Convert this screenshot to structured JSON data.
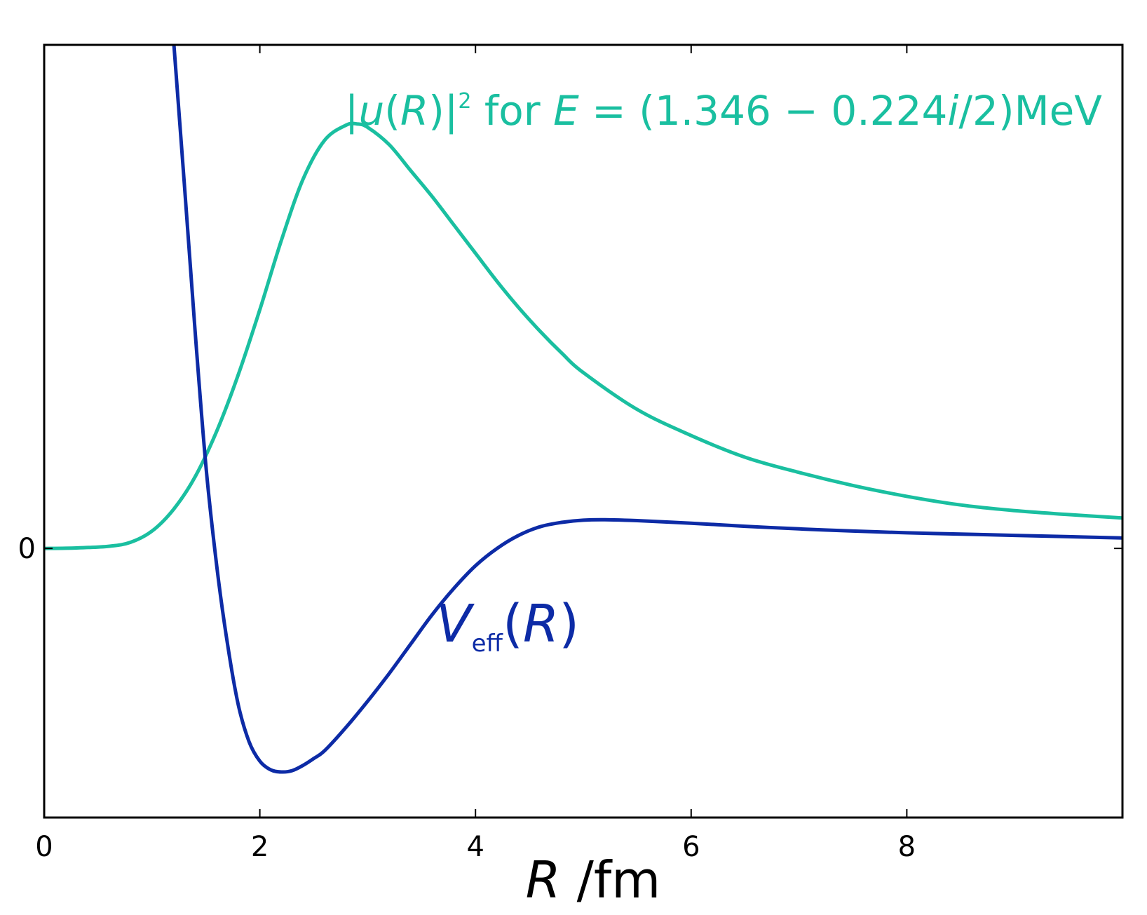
{
  "chart_data": {
    "type": "line",
    "xlabel": {
      "var": "R",
      "unit": " /fm"
    },
    "xlim": [
      0,
      10
    ],
    "ylim": [
      -0.62,
      1.16
    ],
    "xticks": [
      0,
      2,
      4,
      6,
      8
    ],
    "yticks": [
      0
    ],
    "grid": false,
    "colors": {
      "psi": "#1ABFA0",
      "veff": "#0D2BA6"
    },
    "annotations": {
      "psi": {
        "p1": "|",
        "p2": "u",
        "p3": "(",
        "p4": "R",
        "p5": ")|",
        "p6": "2",
        "p7": " for ",
        "p8": "E",
        "p9": " = (1.346 − 0.224",
        "p10": "i",
        "p11": "/2)MeV"
      },
      "veff": {
        "v": "V",
        "sub": "eff",
        "open": "(",
        "r": "R",
        "close": ")"
      }
    },
    "series": [
      {
        "key": "psi",
        "x": [
          0.0,
          0.3,
          0.6,
          0.8,
          1.0,
          1.2,
          1.4,
          1.6,
          1.8,
          2.0,
          2.2,
          2.4,
          2.6,
          2.8,
          2.9,
          3.0,
          3.2,
          3.4,
          3.6,
          3.8,
          4.0,
          4.2,
          4.4,
          4.6,
          4.8,
          5.0,
          5.5,
          6.0,
          6.5,
          7.0,
          7.5,
          8.0,
          8.5,
          9.0,
          9.5,
          10.0
        ],
        "y": [
          0.0,
          0.001,
          0.005,
          0.014,
          0.04,
          0.09,
          0.165,
          0.27,
          0.4,
          0.55,
          0.71,
          0.85,
          0.94,
          0.975,
          0.978,
          0.97,
          0.93,
          0.87,
          0.81,
          0.745,
          0.68,
          0.615,
          0.555,
          0.5,
          0.45,
          0.405,
          0.32,
          0.26,
          0.21,
          0.175,
          0.145,
          0.12,
          0.1,
          0.087,
          0.078,
          0.07
        ]
      },
      {
        "key": "veff",
        "x": [
          1.2,
          1.3,
          1.4,
          1.5,
          1.6,
          1.7,
          1.8,
          1.9,
          2.0,
          2.1,
          2.2,
          2.3,
          2.4,
          2.5,
          2.6,
          2.8,
          3.0,
          3.2,
          3.4,
          3.6,
          3.8,
          4.0,
          4.2,
          4.4,
          4.6,
          4.8,
          5.0,
          5.2,
          5.5,
          6.0,
          6.5,
          7.0,
          7.5,
          8.0,
          8.5,
          9.0,
          9.5,
          10.0
        ],
        "y": [
          1.17,
          0.84,
          0.5,
          0.19,
          -0.04,
          -0.22,
          -0.36,
          -0.445,
          -0.49,
          -0.51,
          -0.515,
          -0.512,
          -0.5,
          -0.484,
          -0.466,
          -0.412,
          -0.352,
          -0.288,
          -0.22,
          -0.152,
          -0.092,
          -0.04,
          0.0,
          0.03,
          0.05,
          0.06,
          0.065,
          0.066,
          0.064,
          0.058,
          0.051,
          0.045,
          0.04,
          0.036,
          0.033,
          0.03,
          0.027,
          0.024
        ]
      }
    ]
  }
}
